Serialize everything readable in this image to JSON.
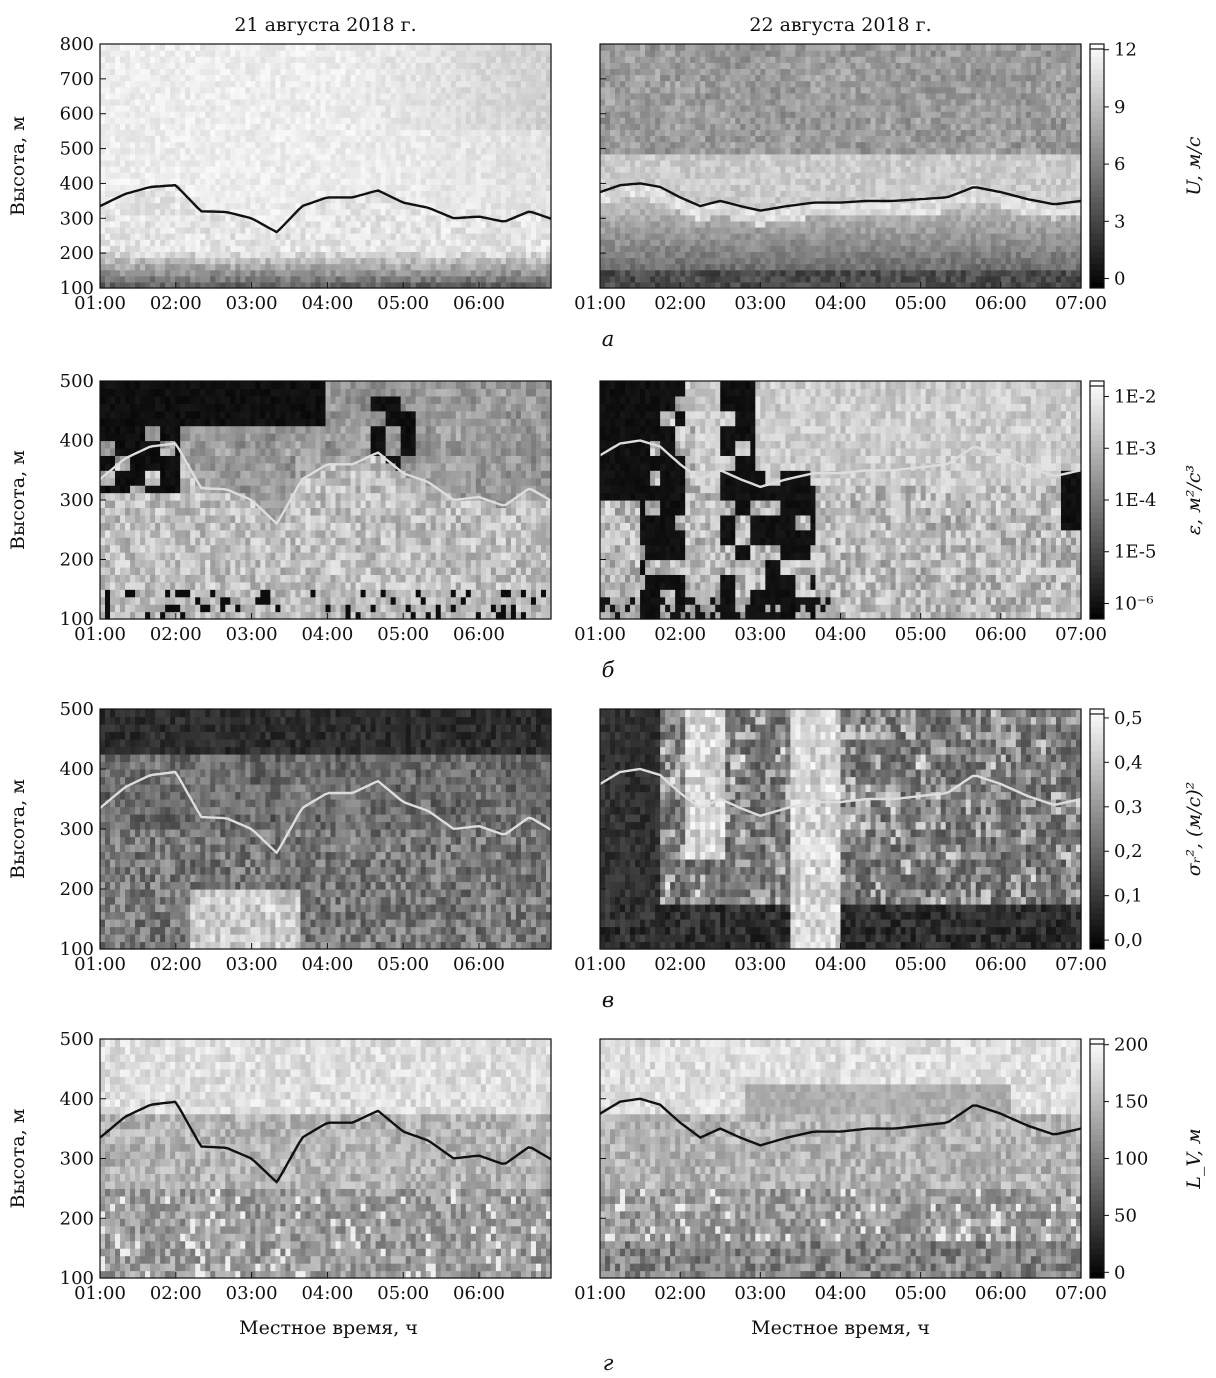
{
  "titles": {
    "left": "21 августа 2018 г.",
    "right": "22 августа 2018 г."
  },
  "xlabel": "Местное время, ч",
  "ylabel": "Высота, м",
  "xticks_left": [
    "01:00",
    "02:00",
    "03:00",
    "04:00",
    "05:00",
    "06:00"
  ],
  "xticks_right": [
    "01:00",
    "02:00",
    "03:00",
    "04:00",
    "05:00",
    "06:00",
    "07:00"
  ],
  "chart_data": [
    {
      "type": "heatmap",
      "panel_label": "а",
      "quantity": "U, м/с",
      "ylim": [
        100,
        800
      ],
      "yticks": [
        "100",
        "200",
        "300",
        "400",
        "500",
        "600",
        "700",
        "800"
      ],
      "colorbar": {
        "ticks": [
          "0",
          "3",
          "6",
          "9",
          "12"
        ],
        "range": [
          -0.5,
          12.3
        ]
      },
      "boundary_line_color": "#111111",
      "series": [
        {
          "name": "21 августа 2018 г.",
          "x": [
            "01:00",
            "01:20",
            "01:40",
            "02:00",
            "02:20",
            "02:40",
            "03:00",
            "03:20",
            "03:40",
            "04:00",
            "04:20",
            "04:40",
            "05:00",
            "05:20",
            "05:40",
            "06:00",
            "06:20",
            "06:40",
            "07:00"
          ],
          "y": [
            335,
            370,
            390,
            395,
            320,
            318,
            300,
            260,
            335,
            360,
            360,
            380,
            345,
            330,
            300,
            305,
            290,
            320,
            295
          ]
        },
        {
          "name": "22 августа 2018 г.",
          "x": [
            "01:00",
            "01:15",
            "01:30",
            "01:45",
            "02:00",
            "02:15",
            "02:30",
            "02:45",
            "03:00",
            "03:20",
            "03:40",
            "04:00",
            "04:20",
            "04:40",
            "05:00",
            "05:20",
            "05:40",
            "06:00",
            "06:20",
            "06:40",
            "07:00"
          ],
          "y": [
            375,
            395,
            400,
            390,
            360,
            335,
            350,
            335,
            322,
            335,
            345,
            345,
            350,
            350,
            355,
            360,
            390,
            375,
            355,
            340,
            350
          ]
        }
      ]
    },
    {
      "type": "heatmap",
      "panel_label": "б",
      "quantity": "ε, м²/с³",
      "ylim": [
        100,
        500
      ],
      "yticks": [
        "100",
        "200",
        "300",
        "400",
        "500"
      ],
      "colorbar": {
        "ticks": [
          "10⁻⁶",
          "1E-5",
          "1E-4",
          "1E-3",
          "1E-2"
        ],
        "range": [
          -6.3,
          -1.7
        ],
        "scale": "log"
      },
      "boundary_line_color": "#dddddd",
      "series": [
        {
          "name": "21 августа 2018 г.",
          "x": [
            "01:00",
            "01:20",
            "01:40",
            "02:00",
            "02:20",
            "02:40",
            "03:00",
            "03:20",
            "03:40",
            "04:00",
            "04:20",
            "04:40",
            "05:00",
            "05:20",
            "05:40",
            "06:00",
            "06:20",
            "06:40",
            "07:00"
          ],
          "y": [
            335,
            370,
            390,
            395,
            320,
            318,
            300,
            260,
            335,
            360,
            360,
            380,
            345,
            330,
            300,
            305,
            290,
            320,
            295
          ]
        },
        {
          "name": "22 августа 2018 г.",
          "x": [
            "01:00",
            "01:15",
            "01:30",
            "01:45",
            "02:00",
            "02:15",
            "02:30",
            "02:45",
            "03:00",
            "03:20",
            "03:40",
            "04:00",
            "04:20",
            "04:40",
            "05:00",
            "05:20",
            "05:40",
            "06:00",
            "06:20",
            "06:40",
            "07:00"
          ],
          "y": [
            375,
            395,
            400,
            390,
            360,
            335,
            350,
            335,
            322,
            335,
            345,
            345,
            350,
            350,
            355,
            360,
            390,
            375,
            355,
            340,
            350
          ]
        }
      ]
    },
    {
      "type": "heatmap",
      "panel_label": "в",
      "quantity": "σᵣ², (м/с)²",
      "ylim": [
        100,
        500
      ],
      "yticks": [
        "100",
        "200",
        "300",
        "400",
        "500"
      ],
      "colorbar": {
        "ticks": [
          "0,0",
          "0,1",
          "0,2",
          "0,3",
          "0,4",
          "0,5"
        ],
        "range": [
          -0.02,
          0.52
        ]
      },
      "boundary_line_color": "#dddddd",
      "series": [
        {
          "name": "21 августа 2018 г.",
          "x": [
            "01:00",
            "01:20",
            "01:40",
            "02:00",
            "02:20",
            "02:40",
            "03:00",
            "03:20",
            "03:40",
            "04:00",
            "04:20",
            "04:40",
            "05:00",
            "05:20",
            "05:40",
            "06:00",
            "06:20",
            "06:40",
            "07:00"
          ],
          "y": [
            335,
            370,
            390,
            395,
            320,
            318,
            300,
            260,
            335,
            360,
            360,
            380,
            345,
            330,
            300,
            305,
            290,
            320,
            295
          ]
        },
        {
          "name": "22 августа 2018 г.",
          "x": [
            "01:00",
            "01:15",
            "01:30",
            "01:45",
            "02:00",
            "02:15",
            "02:30",
            "02:45",
            "03:00",
            "03:20",
            "03:40",
            "04:00",
            "04:20",
            "04:40",
            "05:00",
            "05:20",
            "05:40",
            "06:00",
            "06:20",
            "06:40",
            "07:00"
          ],
          "y": [
            375,
            395,
            400,
            390,
            360,
            335,
            350,
            335,
            322,
            335,
            345,
            345,
            350,
            350,
            355,
            360,
            390,
            375,
            355,
            340,
            350
          ]
        }
      ]
    },
    {
      "type": "heatmap",
      "panel_label": "г",
      "quantity": "L_V, м",
      "ylim": [
        100,
        500
      ],
      "yticks": [
        "100",
        "200",
        "300",
        "400",
        "500"
      ],
      "colorbar": {
        "ticks": [
          "0",
          "50",
          "100",
          "150",
          "200"
        ],
        "range": [
          -5,
          205
        ]
      },
      "boundary_line_color": "#111111",
      "series": [
        {
          "name": "21 августа 2018 г.",
          "x": [
            "01:00",
            "01:20",
            "01:40",
            "02:00",
            "02:20",
            "02:40",
            "03:00",
            "03:20",
            "03:40",
            "04:00",
            "04:20",
            "04:40",
            "05:00",
            "05:20",
            "05:40",
            "06:00",
            "06:20",
            "06:40",
            "07:00"
          ],
          "y": [
            335,
            370,
            390,
            395,
            320,
            318,
            300,
            260,
            335,
            360,
            360,
            380,
            345,
            330,
            300,
            305,
            290,
            320,
            295
          ]
        },
        {
          "name": "22 августа 2018 г.",
          "x": [
            "01:00",
            "01:15",
            "01:30",
            "01:45",
            "02:00",
            "02:15",
            "02:30",
            "02:45",
            "03:00",
            "03:20",
            "03:40",
            "04:00",
            "04:20",
            "04:40",
            "05:00",
            "05:20",
            "05:40",
            "06:00",
            "06:20",
            "06:40",
            "07:00"
          ],
          "y": [
            375,
            395,
            400,
            390,
            360,
            335,
            350,
            335,
            322,
            335,
            345,
            345,
            350,
            350,
            355,
            360,
            390,
            375,
            355,
            340,
            350
          ]
        }
      ]
    }
  ]
}
